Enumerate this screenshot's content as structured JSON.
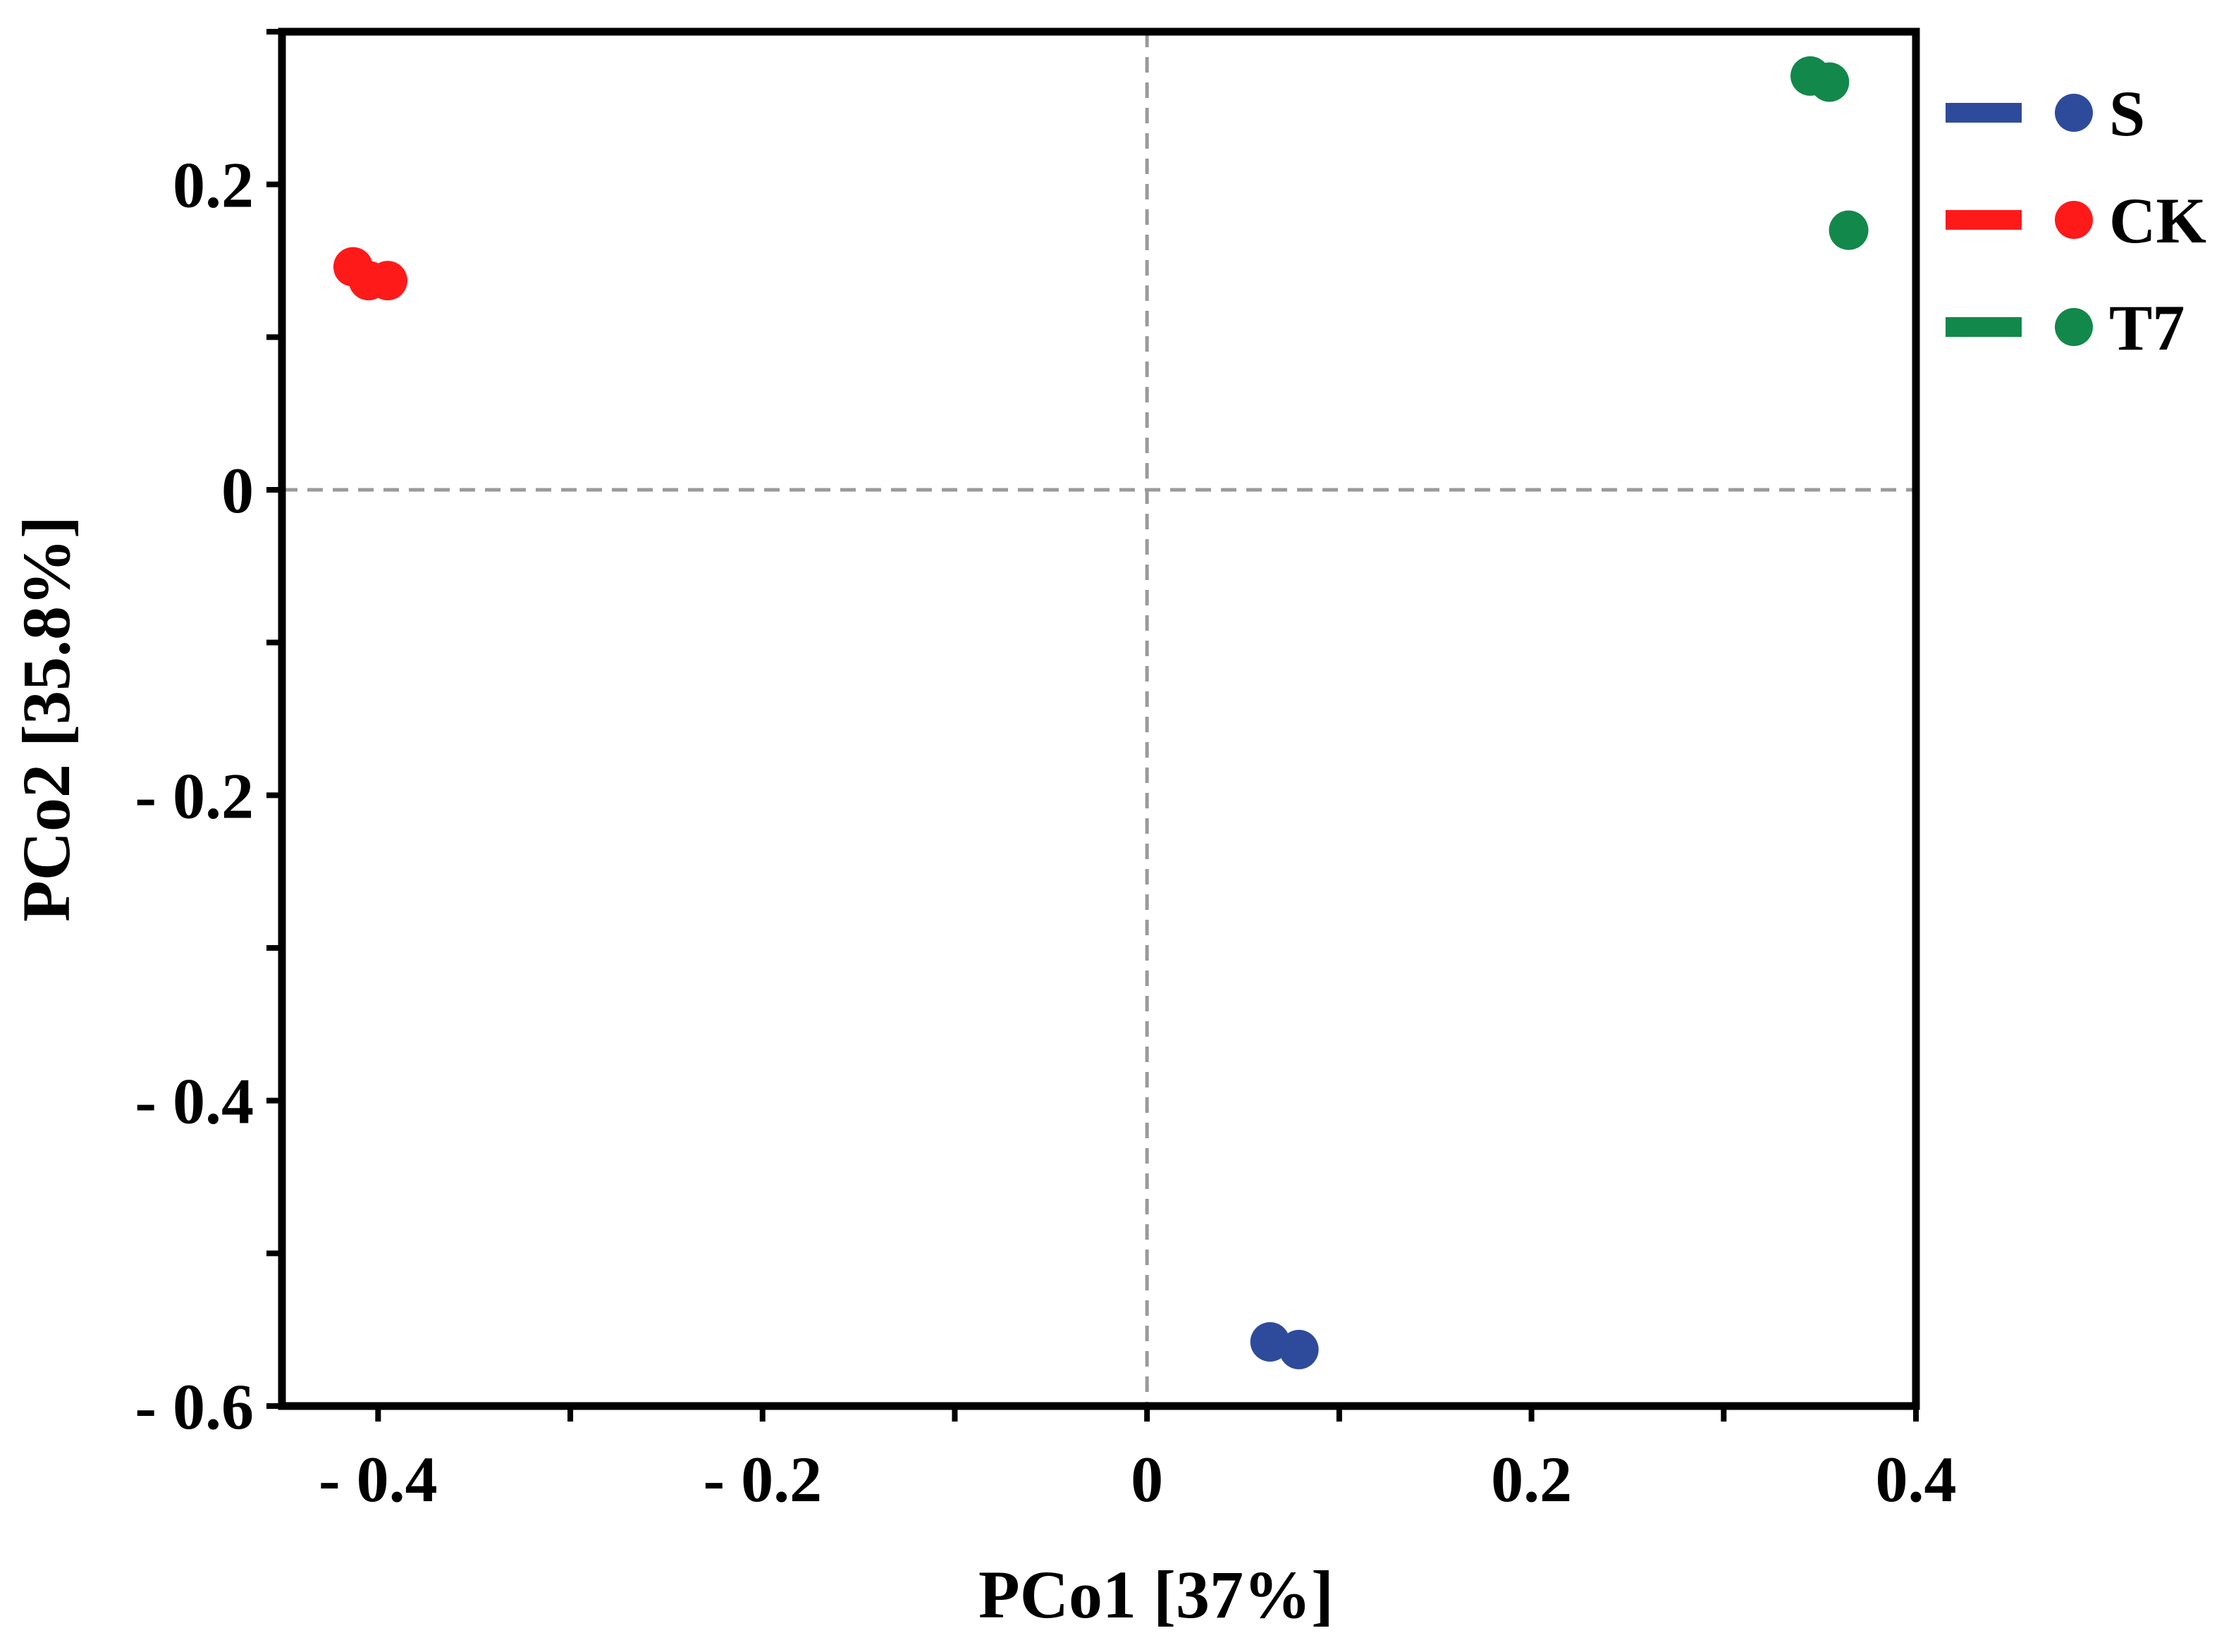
{
  "chart_data": {
    "type": "scatter",
    "title": "",
    "xlabel": "PCo1 [37%]",
    "ylabel": "PCo2 [35.8%]",
    "xlim": [
      -0.45,
      0.4
    ],
    "ylim": [
      -0.6,
      0.3
    ],
    "x_ticks": [
      {
        "value": -0.4,
        "label": "- 0.4"
      },
      {
        "value": -0.2,
        "label": "- 0.2"
      },
      {
        "value": 0,
        "label": "0"
      },
      {
        "value": 0.2,
        "label": "0.2"
      },
      {
        "value": 0.4,
        "label": "0.4"
      }
    ],
    "x_minor_ticks": [
      -0.3,
      -0.1,
      0.1,
      0.3
    ],
    "y_ticks": [
      {
        "value": 0.2,
        "label": "0.2"
      },
      {
        "value": 0,
        "label": "0"
      },
      {
        "value": -0.2,
        "label": "- 0.2"
      },
      {
        "value": -0.4,
        "label": "- 0.4"
      },
      {
        "value": -0.6,
        "label": "- 0.6"
      }
    ],
    "y_minor_ticks": [
      0.3,
      0.1,
      -0.1,
      -0.3,
      -0.5
    ],
    "reference_lines": {
      "x": 0,
      "y": 0,
      "style": "dashed"
    },
    "legend_position": "right-top",
    "series": [
      {
        "name": "S",
        "color": "#2E4B9B",
        "points": [
          {
            "x": 0.064,
            "y": -0.558
          },
          {
            "x": 0.079,
            "y": -0.563
          }
        ]
      },
      {
        "name": "CK",
        "color": "#FF1A1A",
        "points": [
          {
            "x": -0.413,
            "y": 0.146
          },
          {
            "x": -0.405,
            "y": 0.137
          },
          {
            "x": -0.395,
            "y": 0.137
          }
        ]
      },
      {
        "name": "T7",
        "color": "#12884A",
        "points": [
          {
            "x": 0.345,
            "y": 0.271
          },
          {
            "x": 0.355,
            "y": 0.267
          },
          {
            "x": 0.365,
            "y": 0.17
          }
        ]
      }
    ]
  }
}
